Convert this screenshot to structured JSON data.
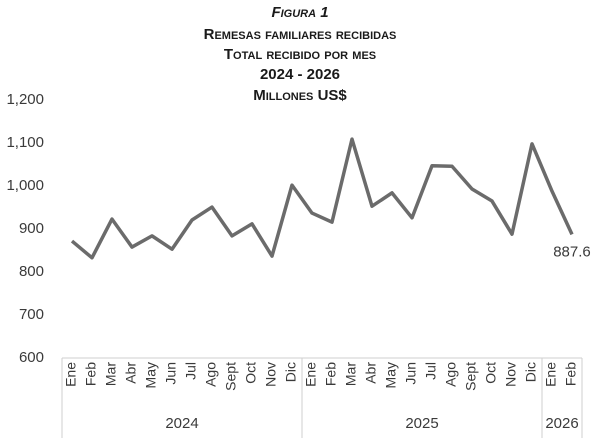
{
  "chart_data": {
    "type": "line",
    "title": "Figura 1",
    "subtitle_lines": [
      "Remesas familiares recibidas",
      "Total recibido por mes",
      "2024 - 2026",
      "Millones US$"
    ],
    "groups": [
      {
        "label": "2024",
        "categories": [
          "Ene",
          "Feb",
          "Mar",
          "Abr",
          "May",
          "Jun",
          "Jul",
          "Ago",
          "Sept",
          "Oct",
          "Nov",
          "Dic"
        ]
      },
      {
        "label": "2025",
        "categories": [
          "Ene",
          "Feb",
          "Mar",
          "Abr",
          "May",
          "Jun",
          "Jul",
          "Ago",
          "Sept",
          "Oct",
          "Nov",
          "Dic"
        ]
      },
      {
        "label": "2026",
        "categories": [
          "Ene",
          "Feb"
        ]
      }
    ],
    "values": [
      872,
      833,
      923,
      858,
      884,
      853,
      921,
      951,
      884,
      912,
      837,
      1002,
      937,
      916,
      1109,
      953,
      984,
      926,
      1047,
      1046,
      993,
      965,
      888,
      1098,
      988,
      887.6
    ],
    "color": "#6b6b6b",
    "ylim": [
      600,
      1200
    ],
    "yticks": [
      600,
      700,
      800,
      900,
      {
        "value": 1000,
        "label": "1,000"
      },
      {
        "value": 1100,
        "label": "1,100"
      },
      {
        "value": 1200,
        "label": "1,200"
      }
    ],
    "last_value_label": "887.6",
    "grid": false
  }
}
